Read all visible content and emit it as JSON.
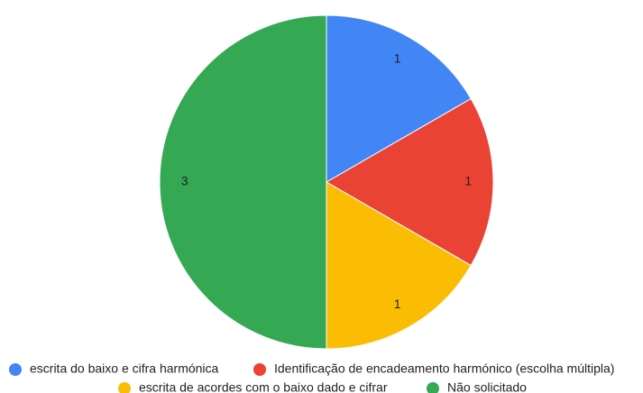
{
  "chart_data": {
    "type": "pie",
    "categories": [
      "escrita do baixo e cifra harmónica",
      "Identificação de encadeamento harmónico (escolha múltipla)",
      "escrita de acordes com o baixo dado e cifrar",
      "Não solicitado"
    ],
    "values": [
      1,
      1,
      1,
      3
    ],
    "colors": [
      "#4285f4",
      "#ea4335",
      "#fbbc04",
      "#34a853"
    ],
    "legend": "bottom"
  }
}
